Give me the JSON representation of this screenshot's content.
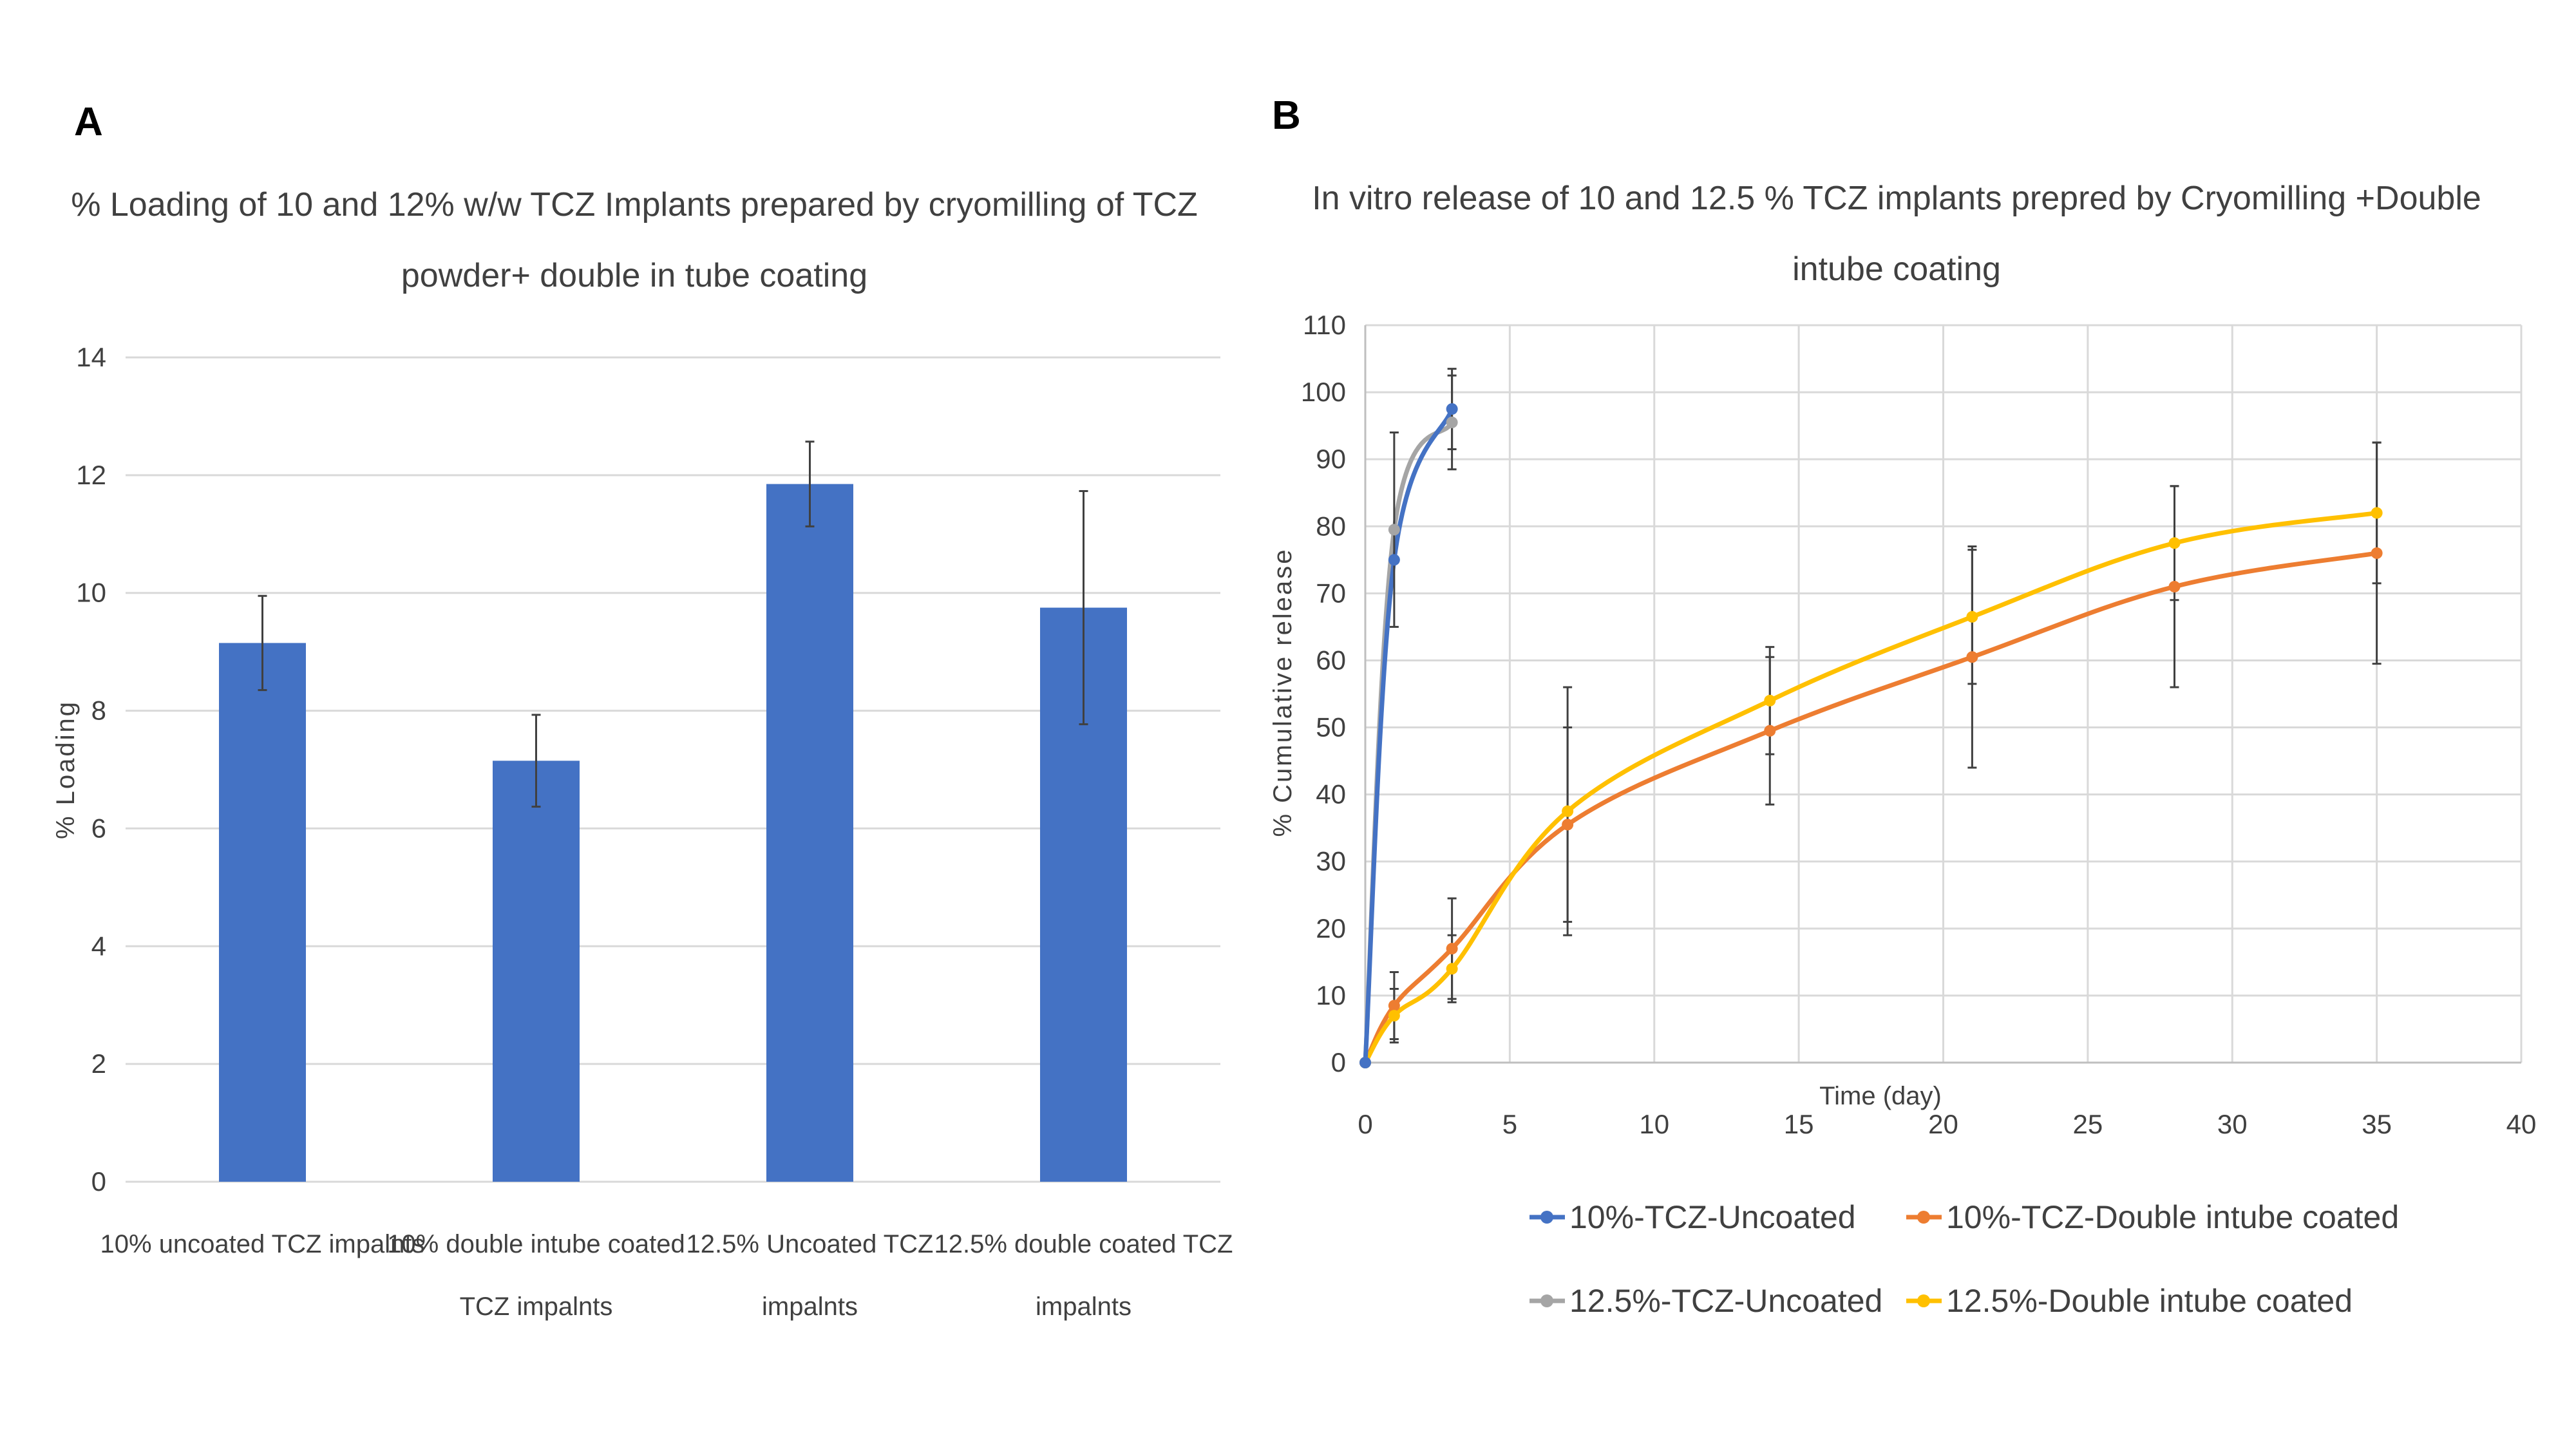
{
  "chart_data": [
    {
      "panel": "A",
      "type": "bar",
      "title": [
        "% Loading of 10 and 12% w/w TCZ Implants prepared by cryomilling of TCZ",
        "powder+ double in tube coating"
      ],
      "xlabel": "",
      "ylabel": "% Loading",
      "ylim": [
        0,
        14
      ],
      "yticks": [
        0,
        2,
        4,
        6,
        8,
        10,
        12,
        14
      ],
      "grid": true,
      "categories": [
        [
          "10% uncoated TCZ impalnts"
        ],
        [
          "10% double intube coated",
          "TCZ impalnts"
        ],
        [
          "12.5% Uncoated TCZ",
          "impalnts"
        ],
        [
          "12.5% double coated TCZ",
          "impalnts"
        ]
      ],
      "values": [
        9.15,
        7.15,
        11.85,
        9.75
      ],
      "errors": [
        0.8,
        0.78,
        0.72,
        1.98
      ],
      "color": "#4472c4"
    },
    {
      "panel": "B",
      "type": "line",
      "title": [
        "In vitro release of 10 and 12.5 % TCZ implants prepred by Cryomilling +Double",
        "intube coating"
      ],
      "xlabel": "Time (day)",
      "ylabel": "% Cumulative release",
      "xlim": [
        0,
        40
      ],
      "ylim": [
        0,
        110
      ],
      "xticks": [
        0,
        5,
        10,
        15,
        20,
        25,
        30,
        35,
        40
      ],
      "yticks": [
        0,
        10,
        20,
        30,
        40,
        50,
        60,
        70,
        80,
        90,
        100,
        110
      ],
      "grid": true,
      "legend_position": "bottom",
      "series": [
        {
          "name": "10%-TCZ-Uncoated",
          "color": "#4472c4",
          "x": [
            0,
            1,
            3
          ],
          "y": [
            0,
            75,
            97.5
          ],
          "errors": [
            0,
            0,
            6
          ]
        },
        {
          "name": "10%-TCZ-Double intube coated",
          "color": "#ed7d31",
          "x": [
            0,
            1,
            3,
            7,
            14,
            21,
            28,
            35
          ],
          "y": [
            0,
            8.5,
            17,
            35.5,
            49.5,
            60.5,
            71,
            76
          ],
          "errors": [
            0,
            5,
            7.5,
            14.5,
            11,
            16.5,
            15,
            16.5
          ]
        },
        {
          "name": "12.5%-TCZ-Uncoated",
          "color": "#a5a5a5",
          "x": [
            0,
            1,
            3
          ],
          "y": [
            0,
            79.5,
            95.5
          ],
          "errors": [
            0,
            14.5,
            7
          ]
        },
        {
          "name": "12.5%-Double intube coated",
          "color": "#ffc000",
          "x": [
            0,
            1,
            3,
            7,
            14,
            21,
            28,
            35
          ],
          "y": [
            0,
            7,
            14,
            37.5,
            54,
            66.5,
            77.5,
            82
          ],
          "errors": [
            0,
            4,
            5,
            18.5,
            8,
            10,
            8.5,
            10.5
          ]
        }
      ]
    }
  ]
}
